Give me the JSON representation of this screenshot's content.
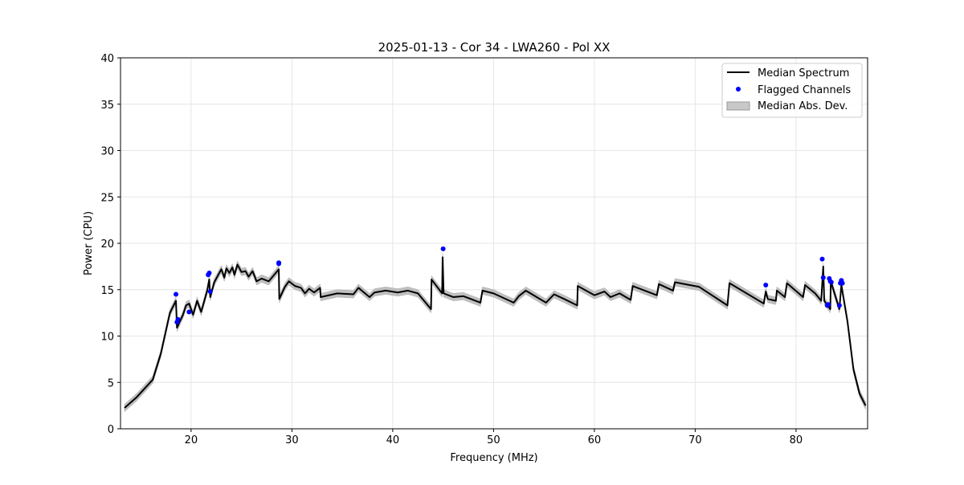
{
  "chart_data": {
    "type": "line",
    "title": "2025-01-13 - Cor 34 - LWA260 - Pol XX",
    "xlabel": "Frequency (MHz)",
    "ylabel": "Power (CPU)",
    "xlim": [
      13.0,
      87.1
    ],
    "ylim": [
      0,
      40
    ],
    "xticks": [
      20,
      30,
      40,
      50,
      60,
      70,
      80
    ],
    "yticks": [
      0,
      5,
      10,
      15,
      20,
      25,
      30,
      35,
      40
    ],
    "grid": true,
    "legend_position": "top-right",
    "legend": [
      "Median Spectrum",
      "Flagged Channels",
      "Median Abs. Dev."
    ],
    "colors": {
      "median": "#000000",
      "flagged": "#0000ff",
      "mad": "#bfbfbf"
    },
    "mad_halfwidth": 0.4,
    "median_spectrum": [
      [
        13.4,
        2.25
      ],
      [
        14.6,
        3.4
      ],
      [
        16.2,
        5.3
      ],
      [
        17.0,
        8.1
      ],
      [
        17.9,
        12.5
      ],
      [
        18.5,
        13.8
      ],
      [
        18.6,
        10.9
      ],
      [
        19.2,
        12.3
      ],
      [
        19.5,
        13.3
      ],
      [
        19.8,
        13.5
      ],
      [
        20.2,
        12.3
      ],
      [
        20.6,
        13.8
      ],
      [
        21.0,
        12.6
      ],
      [
        21.6,
        14.9
      ],
      [
        21.8,
        16.1
      ],
      [
        21.9,
        14.2
      ],
      [
        22.3,
        15.8
      ],
      [
        22.6,
        16.4
      ],
      [
        23.0,
        17.2
      ],
      [
        23.3,
        16.3
      ],
      [
        23.5,
        17.3
      ],
      [
        23.8,
        16.8
      ],
      [
        24.1,
        17.4
      ],
      [
        24.3,
        16.6
      ],
      [
        24.6,
        17.7
      ],
      [
        25.0,
        16.9
      ],
      [
        25.4,
        17.0
      ],
      [
        25.7,
        16.4
      ],
      [
        26.1,
        17.0
      ],
      [
        26.5,
        15.9
      ],
      [
        27.0,
        16.2
      ],
      [
        27.7,
        15.9
      ],
      [
        28.7,
        17.2
      ],
      [
        28.75,
        14.0
      ],
      [
        29.3,
        15.3
      ],
      [
        29.7,
        15.9
      ],
      [
        30.3,
        15.4
      ],
      [
        30.9,
        15.2
      ],
      [
        31.3,
        14.6
      ],
      [
        31.7,
        15.1
      ],
      [
        32.2,
        14.7
      ],
      [
        32.8,
        15.2
      ],
      [
        32.85,
        14.2
      ],
      [
        34.5,
        14.6
      ],
      [
        36.1,
        14.5
      ],
      [
        36.6,
        15.2
      ],
      [
        37.7,
        14.2
      ],
      [
        38.2,
        14.7
      ],
      [
        39.3,
        14.9
      ],
      [
        40.5,
        14.7
      ],
      [
        41.5,
        14.9
      ],
      [
        42.5,
        14.6
      ],
      [
        43.8,
        12.9
      ],
      [
        43.85,
        16.1
      ],
      [
        44.9,
        14.6
      ],
      [
        44.95,
        18.5
      ],
      [
        45.05,
        14.6
      ],
      [
        46.0,
        14.2
      ],
      [
        47.0,
        14.3
      ],
      [
        48.7,
        13.6
      ],
      [
        48.9,
        14.9
      ],
      [
        50.0,
        14.6
      ],
      [
        52.0,
        13.6
      ],
      [
        52.5,
        14.3
      ],
      [
        53.2,
        14.9
      ],
      [
        55.2,
        13.6
      ],
      [
        56.0,
        14.5
      ],
      [
        57.0,
        14.0
      ],
      [
        58.3,
        13.3
      ],
      [
        58.35,
        15.4
      ],
      [
        60.0,
        14.4
      ],
      [
        61.0,
        14.8
      ],
      [
        61.6,
        14.2
      ],
      [
        62.5,
        14.6
      ],
      [
        63.6,
        13.9
      ],
      [
        63.8,
        15.4
      ],
      [
        66.2,
        14.4
      ],
      [
        66.4,
        15.6
      ],
      [
        67.8,
        14.9
      ],
      [
        68.0,
        15.8
      ],
      [
        70.4,
        15.3
      ],
      [
        73.2,
        13.3
      ],
      [
        73.4,
        15.7
      ],
      [
        76.8,
        13.5
      ],
      [
        77.0,
        14.8
      ],
      [
        77.2,
        14.0
      ],
      [
        78.0,
        13.8
      ],
      [
        78.1,
        14.9
      ],
      [
        78.9,
        14.2
      ],
      [
        79.1,
        15.7
      ],
      [
        80.7,
        14.2
      ],
      [
        80.9,
        15.5
      ],
      [
        81.9,
        14.6
      ],
      [
        82.5,
        13.8
      ],
      [
        82.7,
        17.5
      ],
      [
        82.8,
        13.8
      ],
      [
        83.4,
        12.9
      ],
      [
        83.45,
        15.9
      ],
      [
        84.3,
        12.9
      ],
      [
        84.5,
        15.5
      ],
      [
        85.1,
        11.6
      ],
      [
        85.7,
        6.4
      ],
      [
        86.3,
        3.8
      ],
      [
        86.9,
        2.5
      ]
    ],
    "flagged_channels": [
      [
        18.5,
        14.5
      ],
      [
        18.6,
        11.5
      ],
      [
        18.7,
        11.8
      ],
      [
        19.8,
        12.6
      ],
      [
        21.7,
        16.6
      ],
      [
        21.8,
        16.8
      ],
      [
        21.9,
        14.8
      ],
      [
        28.7,
        17.9
      ],
      [
        28.7,
        17.8
      ],
      [
        45.0,
        19.4
      ],
      [
        77.0,
        15.5
      ],
      [
        82.6,
        18.3
      ],
      [
        82.7,
        16.3
      ],
      [
        83.1,
        13.3
      ],
      [
        83.2,
        13.4
      ],
      [
        83.3,
        16.2
      ],
      [
        83.4,
        15.9
      ],
      [
        83.5,
        15.8
      ],
      [
        84.3,
        13.3
      ],
      [
        84.4,
        15.7
      ],
      [
        84.5,
        16.0
      ],
      [
        84.6,
        15.7
      ]
    ]
  }
}
